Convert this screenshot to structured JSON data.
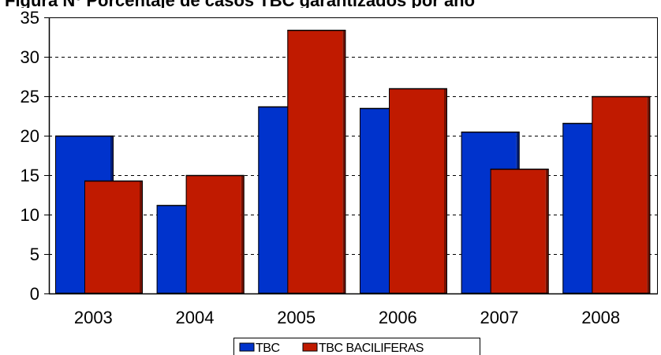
{
  "chart_data": {
    "type": "bar",
    "title": "Figura Nº Porcentaje de casos TBC garantizados por año",
    "categories": [
      "2003",
      "2004",
      "2005",
      "2006",
      "2007",
      "2008"
    ],
    "series": [
      {
        "name": "TBC",
        "values": [
          20,
          11.2,
          23.7,
          23.5,
          20.5,
          21.6
        ],
        "color": "#0033cc"
      },
      {
        "name": "TBC BACILIFERAS",
        "values": [
          14.3,
          15,
          33.4,
          26,
          15.8,
          25
        ],
        "color": "#c01a00"
      }
    ],
    "ylim": [
      0,
      35
    ],
    "yticks": [
      0,
      5,
      10,
      15,
      20,
      25,
      30,
      35
    ],
    "grid": true,
    "legend_position": "bottom"
  }
}
